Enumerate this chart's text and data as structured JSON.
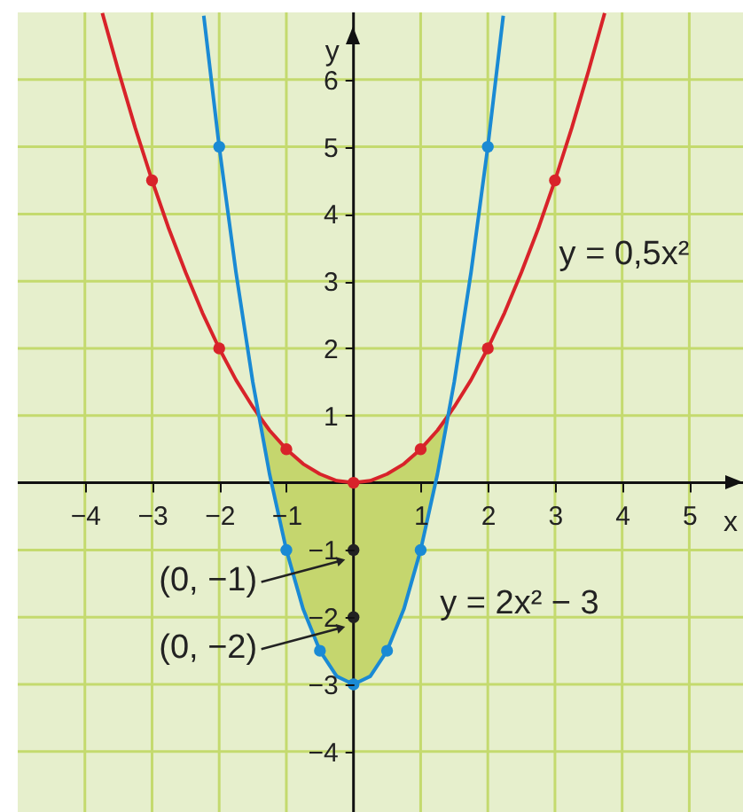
{
  "chart_data": {
    "type": "line",
    "xlabel": "x",
    "ylabel": "y",
    "xlim": [
      -5,
      5.8
    ],
    "ylim": [
      -4.9,
      7
    ],
    "xticks": [
      {
        "value": -4,
        "label": "−4"
      },
      {
        "value": -3,
        "label": "−3"
      },
      {
        "value": -2,
        "label": "−2"
      },
      {
        "value": -1,
        "label": "−1"
      },
      1,
      2,
      3,
      4,
      5
    ],
    "yticks": [
      {
        "value": -4,
        "label": "−4"
      },
      {
        "value": -3,
        "label": "−3"
      },
      {
        "value": -2,
        "label": "−2"
      },
      {
        "value": -1,
        "label": "−1"
      },
      1,
      2,
      3,
      4,
      5,
      6
    ],
    "grid": true,
    "line_style": "solid",
    "series": [
      {
        "color": "#d8232a",
        "x": [
          -3.74,
          -3.5,
          -3.25,
          -3,
          -2.75,
          -2.5,
          -2.25,
          -2,
          -1.75,
          -1.5,
          -1.41,
          -1.25,
          -1,
          -0.75,
          -0.5,
          -0.25,
          0,
          0.25,
          0.5,
          0.75,
          1,
          1.25,
          1.41,
          1.5,
          1.75,
          2,
          2.25,
          2.5,
          2.75,
          3,
          3.25,
          3.5,
          3.74
        ],
        "values": [
          6.99,
          6.13,
          5.28,
          4.5,
          3.78,
          3.13,
          2.53,
          2,
          1.53,
          1.13,
          1,
          0.78,
          0.5,
          0.28,
          0.13,
          0.03,
          0,
          0.03,
          0.13,
          0.28,
          0.5,
          0.78,
          1,
          1.13,
          1.53,
          2,
          2.53,
          3.13,
          3.78,
          4.5,
          5.28,
          6.13,
          6.99
        ],
        "lower": [
          null,
          null,
          null,
          null,
          null,
          null,
          null,
          null,
          null,
          null,
          1,
          0.13,
          -1,
          -1.88,
          -2.5,
          -2.88,
          -3,
          -2.88,
          -2.5,
          -1.88,
          -1,
          0.13,
          1,
          null,
          null,
          null,
          null,
          null,
          null,
          null,
          null,
          null,
          null
        ],
        "upper": [
          null,
          null,
          null,
          null,
          null,
          null,
          null,
          null,
          null,
          null,
          1,
          0.78,
          0.5,
          0.28,
          0.13,
          0.03,
          0,
          0.03,
          0.13,
          0.28,
          0.5,
          0.78,
          1,
          null,
          null,
          null,
          null,
          null,
          null,
          null,
          null,
          null,
          null
        ]
      },
      {
        "color": "#1a8ad4",
        "x": [
          -2.23,
          -2,
          -1.75,
          -1.5,
          -1.25,
          -1,
          -0.75,
          -0.5,
          -0.25,
          0,
          0.25,
          0.5,
          0.75,
          1,
          1.25,
          1.5,
          1.75,
          2,
          2.23
        ],
        "values": [
          6.95,
          5,
          3.13,
          1.5,
          0.13,
          -1,
          -1.88,
          -2.5,
          -2.88,
          -3,
          -2.88,
          -2.5,
          -1.88,
          -1,
          0.13,
          1.5,
          3.13,
          5,
          6.95
        ]
      },
      {
        "type": "scatter",
        "marker": "circle",
        "color": "#d8232a",
        "x": [
          -3,
          -2,
          -1,
          0,
          1,
          2,
          3
        ],
        "values": [
          4.5,
          2,
          0.5,
          0,
          0.5,
          2,
          4.5
        ]
      },
      {
        "type": "scatter",
        "marker": "circle",
        "color": "#1a8ad4",
        "x": [
          -2,
          -1,
          -0.5,
          0,
          0.5,
          1,
          2
        ],
        "values": [
          5,
          -1,
          -2.5,
          -3,
          -2.5,
          -1,
          5
        ]
      },
      {
        "type": "scatter",
        "marker": "circle",
        "color": "#222222",
        "x": [
          0,
          0
        ],
        "values": [
          -1,
          -2
        ]
      }
    ],
    "annotations": [
      "y = 0,5x²",
      "y = 2x² − 3",
      {
        "text": "(0, −1)",
        "x": 0,
        "y": -1
      },
      {
        "text": "(0, −2)",
        "x": 0,
        "y": -2
      }
    ]
  }
}
